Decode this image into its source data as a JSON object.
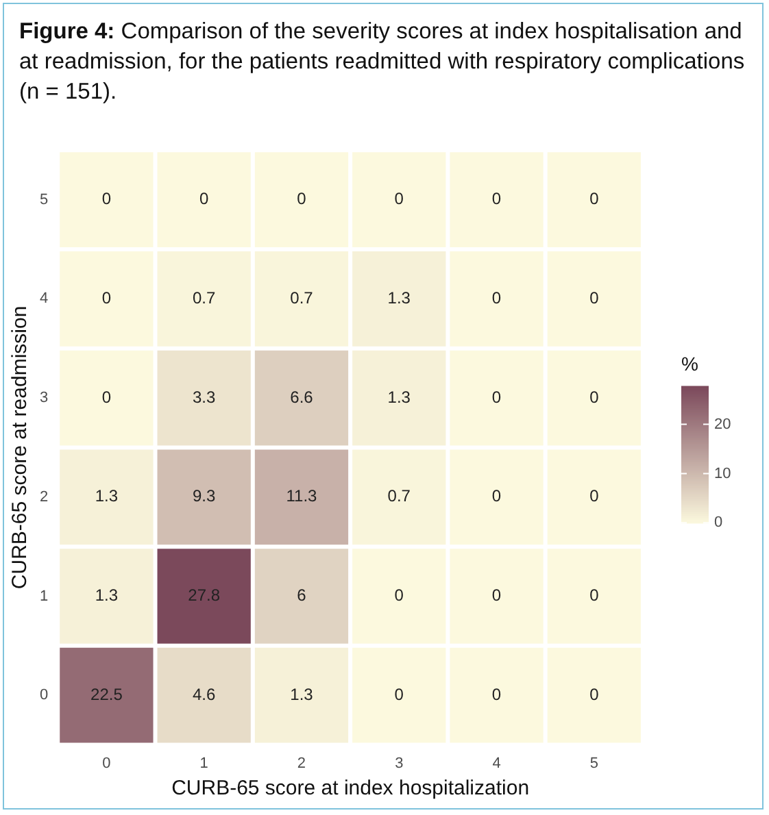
{
  "chart_data": {
    "type": "heatmap",
    "title": "Figure 4: Comparison of the severity scores at index hospitalisation and at readmission, for the patients readmitted with respiratory complications (n = 151).",
    "xlabel": "CURB-65 score at index hospitalization",
    "ylabel": "CURB-65 score at readmission",
    "clabel": "%",
    "categories": [
      "0",
      "1",
      "2",
      "3",
      "4",
      "5"
    ],
    "y_categories": [
      "5",
      "4",
      "3",
      "2",
      "1",
      "0"
    ],
    "cells": [
      [
        0,
        0,
        0,
        0,
        0,
        0
      ],
      [
        0,
        0.7,
        0.7,
        1.3,
        0,
        0
      ],
      [
        0,
        3.3,
        6.6,
        1.3,
        0,
        0
      ],
      [
        1.3,
        9.3,
        11.3,
        0.7,
        0,
        0
      ],
      [
        1.3,
        27.8,
        6,
        0,
        0,
        0
      ],
      [
        22.5,
        4.6,
        1.3,
        0,
        0,
        0
      ]
    ],
    "clim": [
      0,
      27.8
    ],
    "cticks": [
      0,
      10,
      20
    ],
    "data_labels": true
  }
}
